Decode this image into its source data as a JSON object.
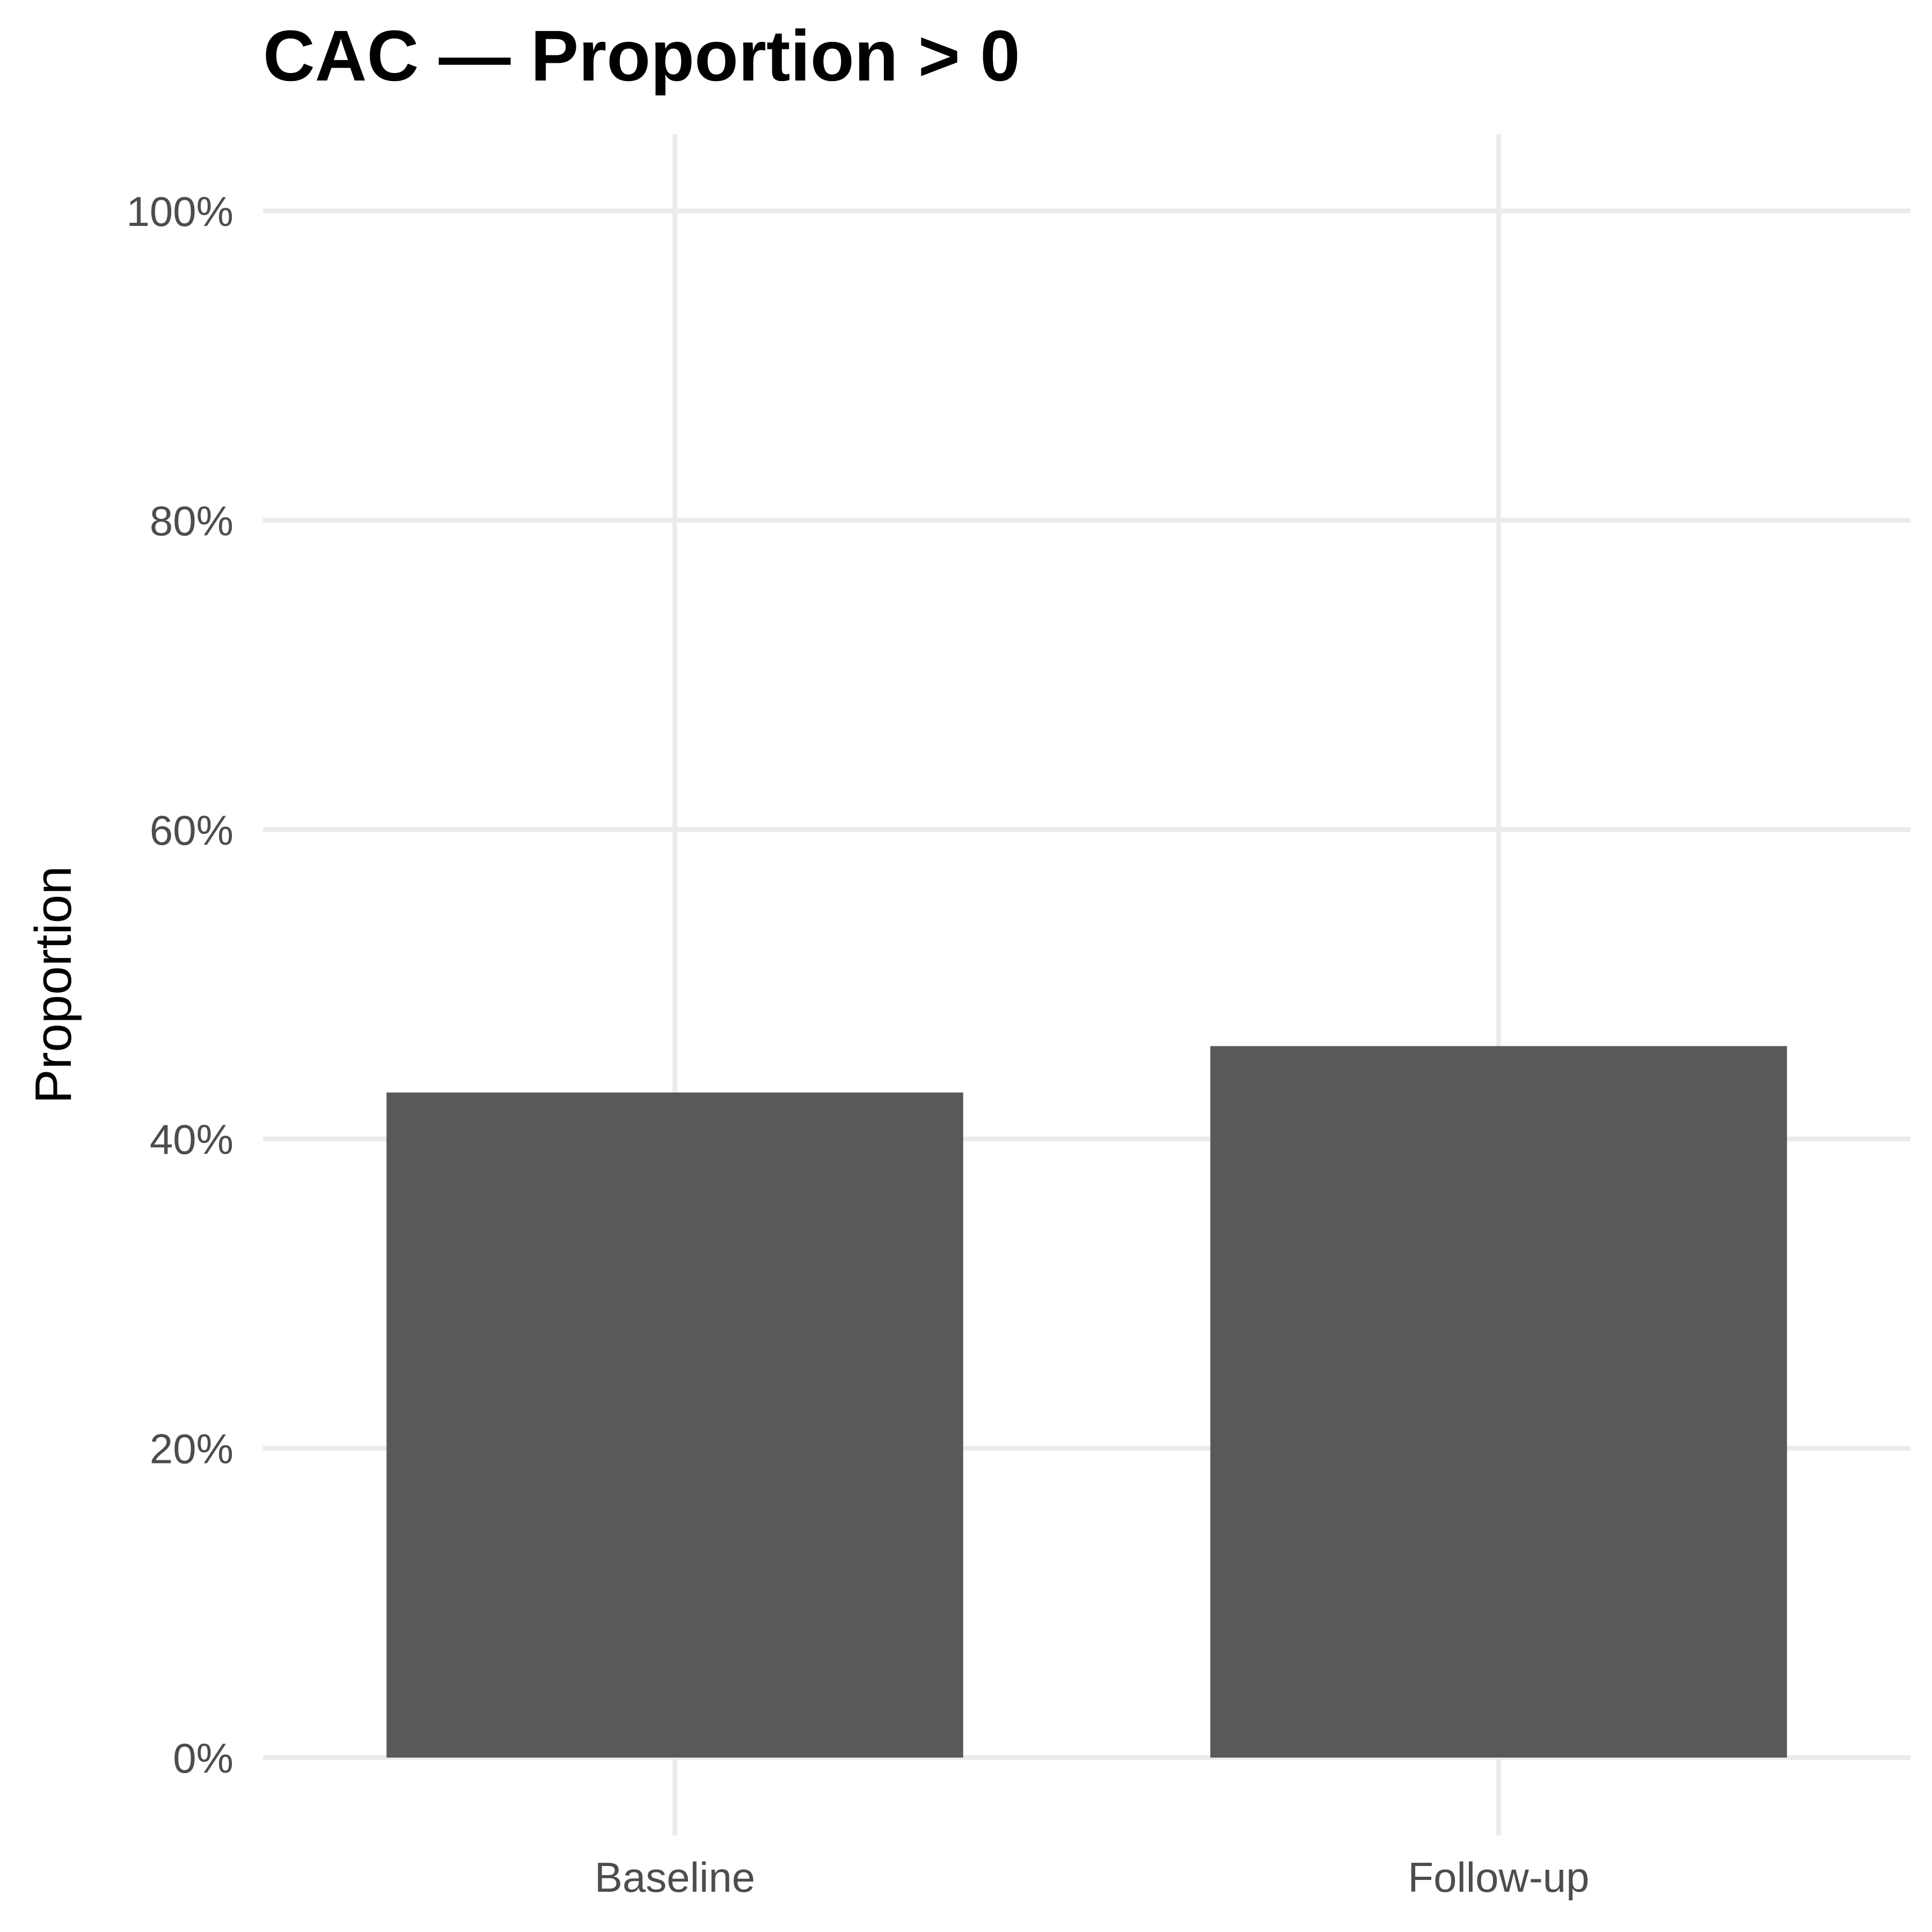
{
  "chart_data": {
    "type": "bar",
    "title": "CAC — Proportion > 0",
    "xlabel": "",
    "ylabel": "Proportion",
    "categories": [
      "Baseline",
      "Follow-up"
    ],
    "values": [
      0.43,
      0.46
    ],
    "ylim": [
      0,
      1
    ],
    "yticks": [
      0,
      0.2,
      0.4,
      0.6,
      0.8,
      1.0
    ],
    "ytick_labels": [
      "0%",
      "20%",
      "40%",
      "60%",
      "80%",
      "100%"
    ],
    "grid": true,
    "legend": "none",
    "bar_color": "#595959",
    "grid_color": "#ebebeb"
  }
}
